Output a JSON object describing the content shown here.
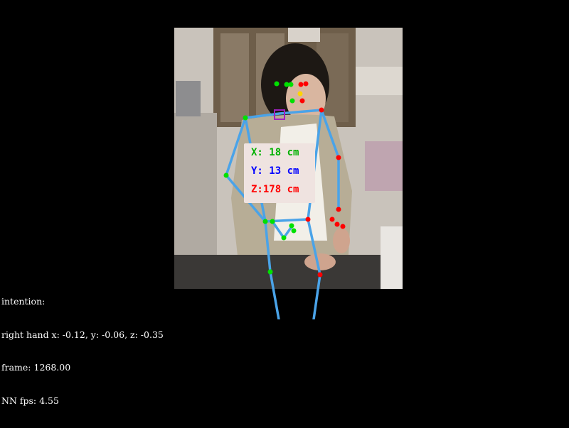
{
  "colors": {
    "background": "#000000",
    "skeleton": "#4aa3e8",
    "left_joint": "#00e000",
    "right_joint": "#ff0000",
    "neck_marker": "#a020c0",
    "eye_marker": "#ffd400",
    "x_text": "#00b000",
    "y_text": "#0000ff",
    "z_text": "#ff0000"
  },
  "camera_frame": {
    "subject": "person seated at a table manipulating a small object",
    "icon": "camera-image"
  },
  "coordinates": {
    "x_label": "X: 18 cm",
    "y_label": "Y: 13 cm",
    "z_label": "Z:178 cm"
  },
  "status": {
    "intention": "intention:",
    "hand": "right hand x: -0.12, y: -0.06, z: -0.35",
    "frame": "frame: 1268.00",
    "fps": "NN fps: 4.55"
  }
}
